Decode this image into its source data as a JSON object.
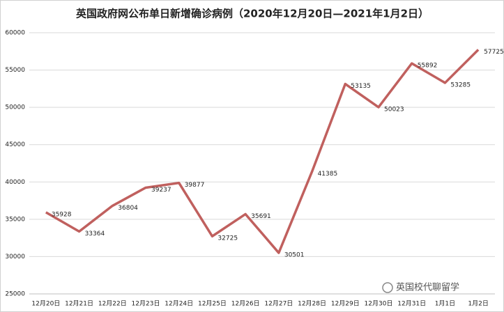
{
  "chart_data": {
    "type": "line",
    "title": "英国政府网公布单日新增确诊病例（2020年12月20日—2021年1月2日）",
    "categories": [
      "12月20日",
      "12月21日",
      "12月22日",
      "12月23日",
      "12月24日",
      "12月25日",
      "12月26日",
      "12月27日",
      "12月28日",
      "12月29日",
      "12月30日",
      "12月31日",
      "1月1日",
      "1月2日"
    ],
    "values": [
      35928,
      33364,
      36804,
      39237,
      39877,
      32725,
      35691,
      30501,
      41385,
      53135,
      50023,
      55892,
      53285,
      57725
    ],
    "color": "#c0605e",
    "ylim": [
      25000,
      60000
    ],
    "yticks": [
      25000,
      30000,
      35000,
      40000,
      45000,
      50000,
      55000,
      60000
    ],
    "grid": true,
    "watermark": "英国校代聊留学"
  }
}
